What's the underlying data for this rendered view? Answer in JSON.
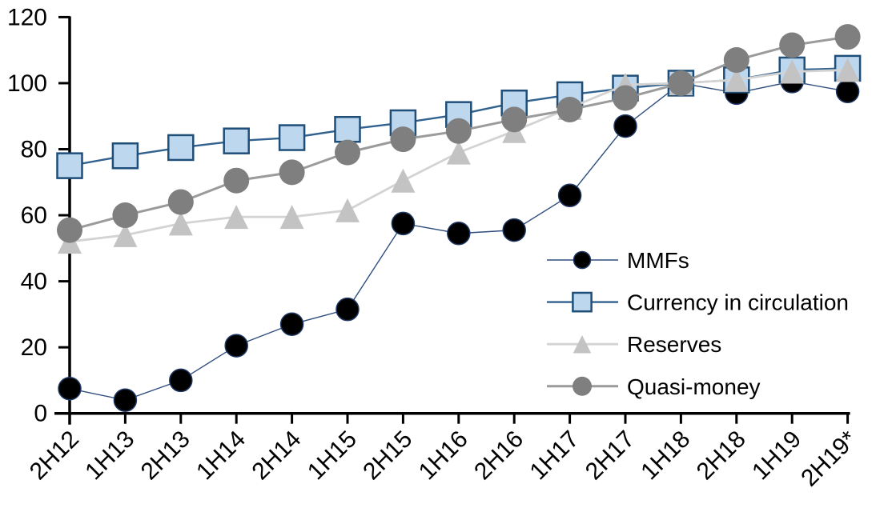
{
  "chart_data": {
    "type": "line",
    "title": "",
    "xlabel": "",
    "ylabel": "",
    "grid": false,
    "legend_position": "inside-right",
    "ylim": [
      0,
      120
    ],
    "yticks": [
      0,
      20,
      40,
      60,
      80,
      100,
      120
    ],
    "categories": [
      "2H12",
      "1H13",
      "2H13",
      "1H14",
      "2H14",
      "1H15",
      "2H15",
      "1H16",
      "2H16",
      "1H17",
      "2H17",
      "1H18",
      "2H18",
      "1H19",
      "2H19*"
    ],
    "series": [
      {
        "name": "MMFs",
        "marker": "circle",
        "marker_fill": "#000000",
        "marker_stroke": "#1F3864",
        "marker_stroke_width": 1.5,
        "marker_size": 14,
        "line_color": "#2F4E7E",
        "line_width": 1.4,
        "values": [
          7.5,
          4,
          10,
          20.5,
          27,
          31.5,
          57.5,
          54.5,
          55.5,
          66,
          87,
          100,
          97,
          100.5,
          97.5
        ]
      },
      {
        "name": "Currency in circulation",
        "marker": "square",
        "marker_fill": "#BDD7EE",
        "marker_stroke": "#1F4E79",
        "marker_stroke_width": 2.5,
        "marker_size": 15.5,
        "line_color": "#31618E",
        "line_width": 2.4,
        "values": [
          75,
          78,
          80.5,
          82.5,
          83.5,
          86,
          88,
          90.5,
          94,
          96.5,
          98.5,
          100,
          101,
          104,
          104.5
        ]
      },
      {
        "name": "Reserves",
        "marker": "triangle",
        "marker_fill": "#C3C3C3",
        "marker_stroke": "none",
        "marker_stroke_width": 0,
        "marker_size": 15,
        "line_color": "#D3D3D3",
        "line_width": 2.8,
        "values": [
          52,
          54,
          57.5,
          59.5,
          59.5,
          61.5,
          70.5,
          79,
          85.5,
          92.5,
          99.5,
          100,
          101,
          103.5,
          104
        ]
      },
      {
        "name": "Quasi-money",
        "marker": "circle",
        "marker_fill": "#7F7F7F",
        "marker_stroke": "none",
        "marker_stroke_width": 0,
        "marker_size": 16,
        "line_color": "#9B9B9B",
        "line_width": 3,
        "values": [
          55.5,
          60,
          64,
          70.5,
          73,
          79,
          83,
          85.5,
          89,
          92,
          95.5,
          100,
          107,
          111.5,
          114
        ]
      }
    ],
    "axis_color": "#000000"
  }
}
